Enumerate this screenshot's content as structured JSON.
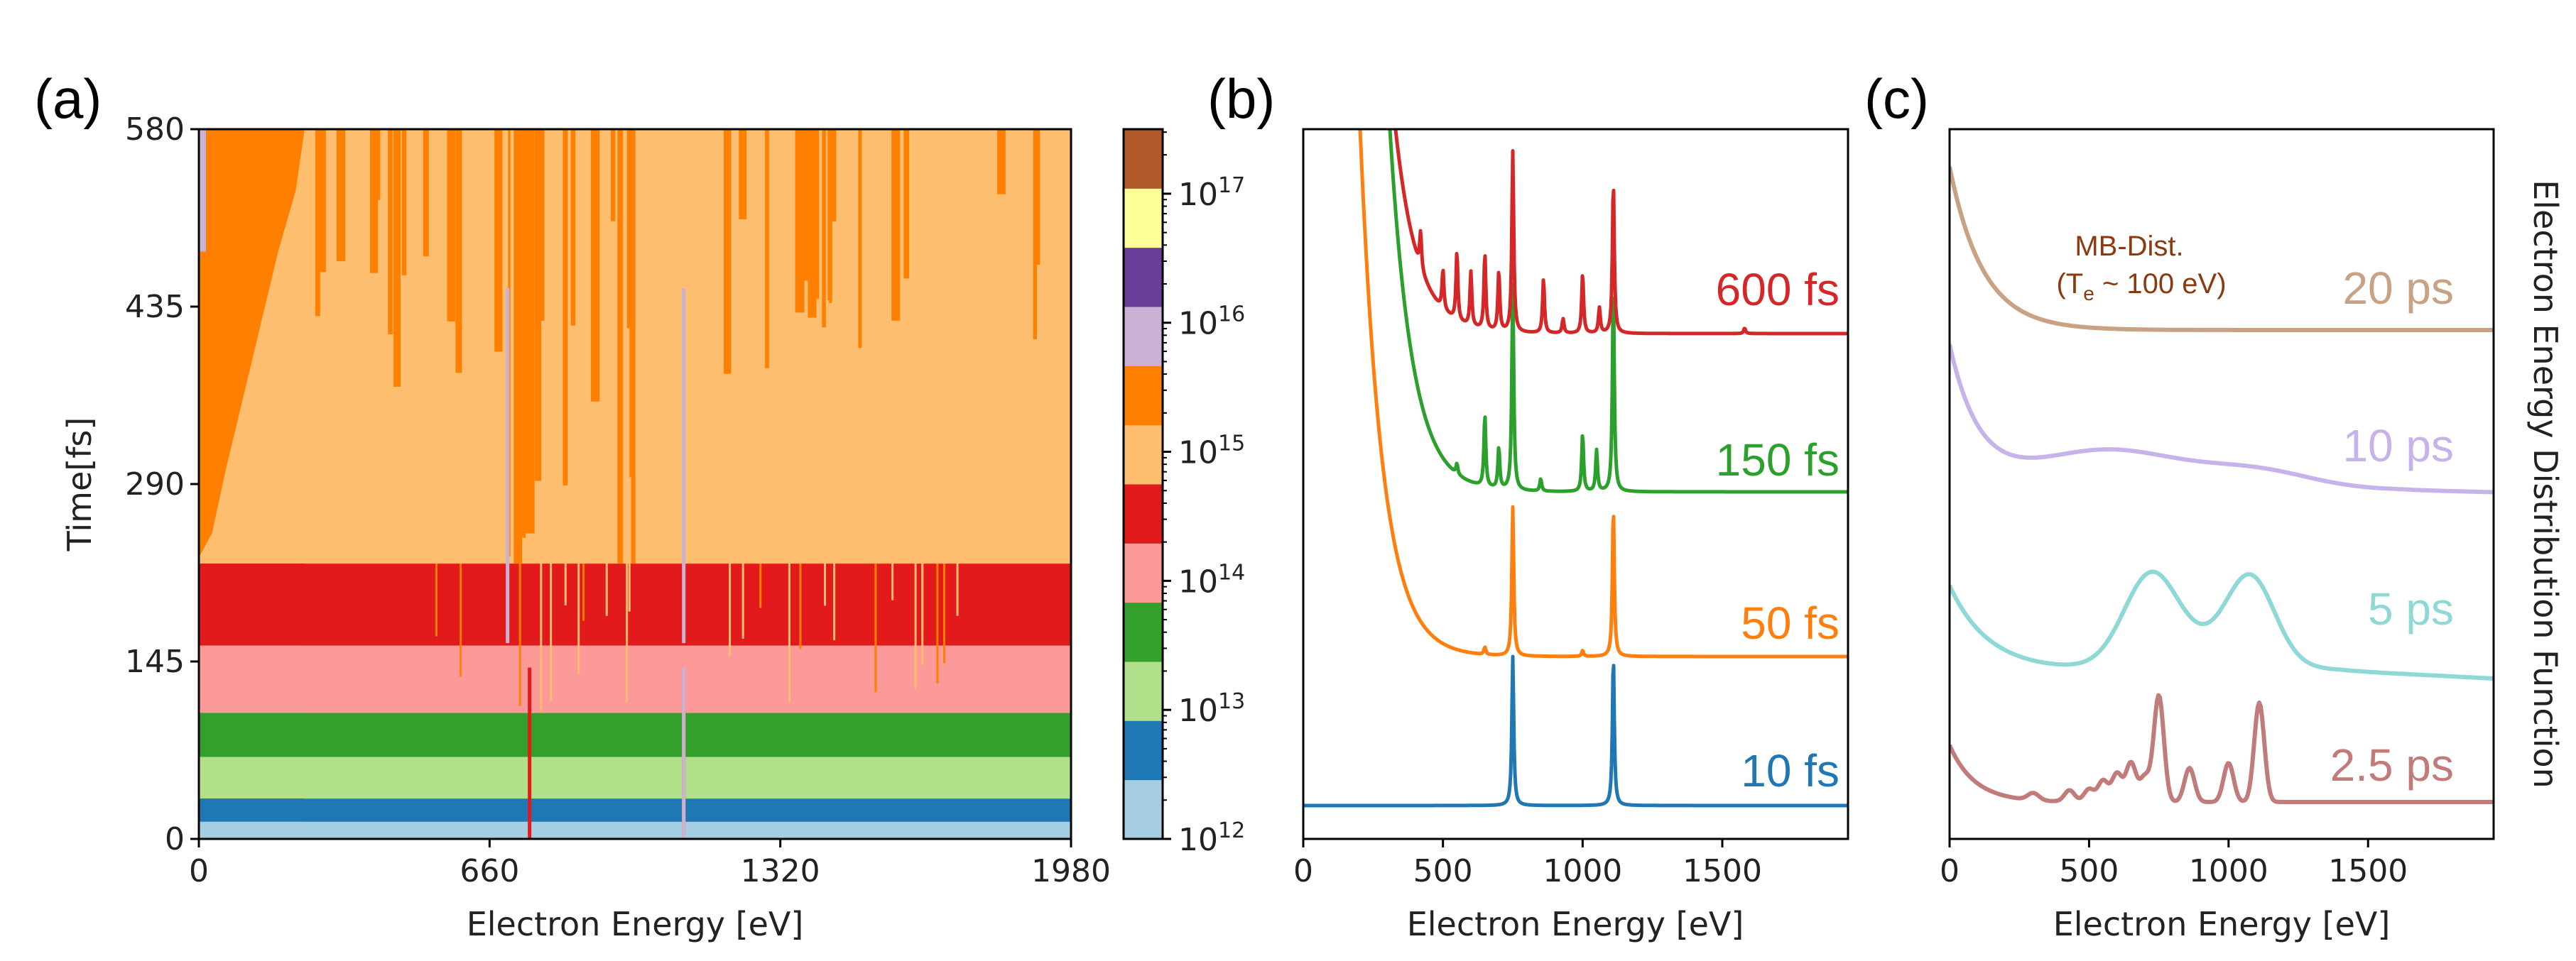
{
  "panels": {
    "a": {
      "label": "(a)"
    },
    "b": {
      "label": "(b)"
    },
    "c": {
      "label": "(c)"
    }
  },
  "chart_data": [
    {
      "id": "a",
      "type": "heatmap",
      "title": "",
      "xlabel": "Electron Energy [eV]",
      "ylabel": "Time[fs]",
      "xlim": [
        0,
        1980
      ],
      "ylim": [
        0,
        580
      ],
      "xticks": [
        0,
        660,
        1320,
        1980
      ],
      "yticks": [
        0,
        145,
        290,
        435,
        580
      ],
      "colorbar": {
        "scale": "log",
        "min_exp": 12,
        "max_exp": 17.5,
        "tick_exponents": [
          12,
          13,
          14,
          15,
          16,
          17
        ],
        "tick_labels": [
          {
            "base": "10",
            "exp": "12"
          },
          {
            "base": "10",
            "exp": "13"
          },
          {
            "base": "10",
            "exp": "14"
          },
          {
            "base": "10",
            "exp": "15"
          },
          {
            "base": "10",
            "exp": "16"
          },
          {
            "base": "10",
            "exp": "17"
          }
        ],
        "colors": [
          "#a6cee3",
          "#1f78b4",
          "#b2df8a",
          "#33a02c",
          "#fb9a99",
          "#e31a1c",
          "#fdbf6f",
          "#ff7f00",
          "#cab2d6",
          "#6a3d9a",
          "#ffff99",
          "#b15928"
        ]
      },
      "bands": [
        {
          "t0": 0,
          "t1": 14,
          "color": "#a6cee3"
        },
        {
          "t0": 14,
          "t1": 33,
          "color": "#1f78b4"
        },
        {
          "t0": 33,
          "t1": 67,
          "color": "#b2df8a"
        },
        {
          "t0": 67,
          "t1": 103,
          "color": "#33a02c"
        },
        {
          "t0": 103,
          "t1": 158,
          "color": "#fb9a99"
        },
        {
          "t0": 158,
          "t1": 225,
          "color": "#e31a1c"
        },
        {
          "t0": 225,
          "t1": 580,
          "color": "#fdbf6f"
        }
      ],
      "hot_front": {
        "color": "#ff7f00",
        "points": [
          [
            0,
            580
          ],
          [
            0,
            230
          ],
          [
            30,
            250
          ],
          [
            60,
            300
          ],
          [
            100,
            360
          ],
          [
            140,
            420
          ],
          [
            180,
            480
          ],
          [
            220,
            530
          ],
          [
            240,
            580
          ]
        ]
      },
      "vertical_lines": [
        {
          "x": 750,
          "color": "#e31a1c"
        },
        {
          "x": 1100,
          "color": "#ff7f00"
        },
        {
          "x": 1100,
          "color": "#cab2d6"
        }
      ]
    },
    {
      "id": "b",
      "type": "line",
      "xlabel": "Electron Energy [eV]",
      "ylabel": "",
      "xlim": [
        0,
        1950
      ],
      "xticks": [
        0,
        500,
        1000,
        1500
      ],
      "peaks_eV": [
        750,
        1110
      ],
      "series": [
        {
          "name": "10 fs",
          "color": "#1f77b4",
          "peaks": [
            [
              750,
              1.0
            ],
            [
              1110,
              1.0
            ]
          ]
        },
        {
          "name": "50 fs",
          "color": "#ff7f0e",
          "peaks": [
            [
              750,
              1.0
            ],
            [
              1110,
              1.0
            ],
            [
              650,
              0.05
            ],
            [
              1000,
              0.04
            ]
          ]
        },
        {
          "name": "150 fs",
          "color": "#2ca02c",
          "peaks": [
            [
              750,
              1.0
            ],
            [
              1110,
              1.0
            ],
            [
              650,
              0.35
            ],
            [
              700,
              0.2
            ],
            [
              1000,
              0.28
            ],
            [
              1050,
              0.2
            ],
            [
              850,
              0.06
            ],
            [
              550,
              0.05
            ]
          ]
        },
        {
          "name": "600 fs",
          "color": "#d62728",
          "peaks": [
            [
              750,
              1.0
            ],
            [
              1110,
              0.84
            ],
            [
              650,
              0.42
            ],
            [
              700,
              0.33
            ],
            [
              600,
              0.3
            ],
            [
              550,
              0.38
            ],
            [
              500,
              0.22
            ],
            [
              420,
              0.2
            ],
            [
              1000,
              0.33
            ],
            [
              860,
              0.3
            ],
            [
              1060,
              0.14
            ],
            [
              290,
              0.1
            ],
            [
              930,
              0.08
            ],
            [
              1580,
              0.03
            ]
          ]
        }
      ]
    },
    {
      "id": "c",
      "type": "line",
      "xlabel": "Electron Energy [eV]",
      "ylabel": "Electron Energy Distribution Function",
      "xlim": [
        0,
        1950
      ],
      "xticks": [
        0,
        500,
        1000,
        1500
      ],
      "annotation": {
        "line1": "MB-Dist.",
        "line2_prefix": "(T",
        "line2_sub": "e",
        "line2_suffix": " ~ 100 eV)"
      },
      "series": [
        {
          "name": "2.5 ps",
          "color": "#c17b7b"
        },
        {
          "name": "5 ps",
          "color": "#8ed8d6"
        },
        {
          "name": "10 ps",
          "color": "#c6b3ea"
        },
        {
          "name": "20 ps",
          "color": "#c9a183"
        }
      ]
    }
  ]
}
